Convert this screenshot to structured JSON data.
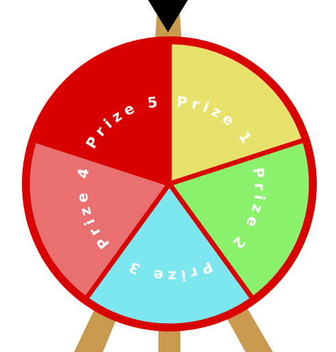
{
  "wheel": {
    "segments": [
      {
        "label": "Prize 1",
        "color": "#e8e26c"
      },
      {
        "label": "Prize 2",
        "color": "#8bf26e"
      },
      {
        "label": "Prize 3",
        "color": "#7de6ef"
      },
      {
        "label": "Prize 4",
        "color": "#e87070"
      },
      {
        "label": "Prize 5",
        "color": "#d90000"
      }
    ],
    "rim_color": "#d90000",
    "label_color": "#ffffff"
  },
  "stand": {
    "color": "#c99a4e"
  },
  "pointer": {
    "color": "#000000",
    "icon": "pointer-triangle-icon"
  }
}
